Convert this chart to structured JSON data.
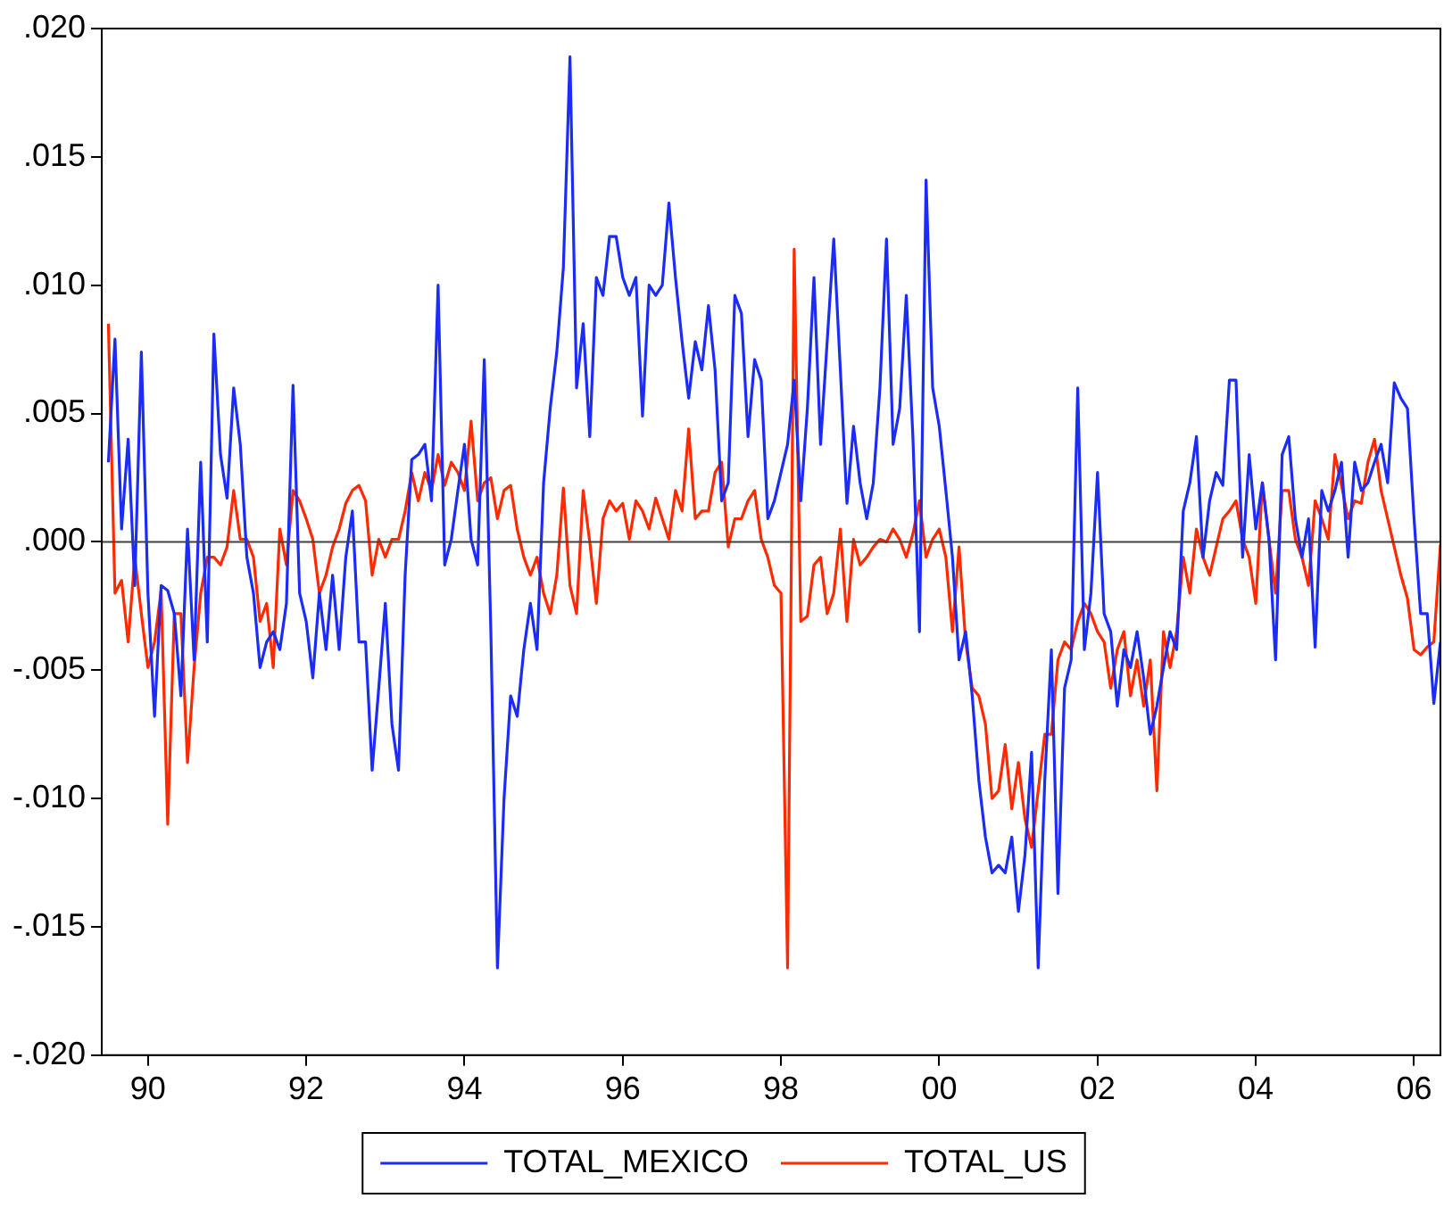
{
  "chart_data": {
    "type": "line",
    "x": [
      "1990-01",
      "1990-02",
      "1990-03",
      "1990-04",
      "1990-05",
      "1990-06",
      "1990-07",
      "1990-08",
      "1990-09",
      "1990-10",
      "1990-11",
      "1990-12",
      "1991-01",
      "1991-02",
      "1991-03",
      "1991-04",
      "1991-05",
      "1991-06",
      "1991-07",
      "1991-08",
      "1991-09",
      "1991-10",
      "1991-11",
      "1991-12",
      "1992-01",
      "1992-02",
      "1992-03",
      "1992-04",
      "1992-05",
      "1992-06",
      "1992-07",
      "1992-08",
      "1992-09",
      "1992-10",
      "1992-11",
      "1992-12",
      "1993-01",
      "1993-02",
      "1993-03",
      "1993-04",
      "1993-05",
      "1993-06",
      "1993-07",
      "1993-08",
      "1993-09",
      "1993-10",
      "1993-11",
      "1993-12",
      "1994-01",
      "1994-02",
      "1994-03",
      "1994-04",
      "1994-05",
      "1994-06",
      "1994-07",
      "1994-08",
      "1994-09",
      "1994-10",
      "1994-11",
      "1994-12",
      "1995-01",
      "1995-02",
      "1995-03",
      "1995-04",
      "1995-05",
      "1995-06",
      "1995-07",
      "1995-08",
      "1995-09",
      "1995-10",
      "1995-11",
      "1995-12",
      "1996-01",
      "1996-02",
      "1996-03",
      "1996-04",
      "1996-05",
      "1996-06",
      "1996-07",
      "1996-08",
      "1996-09",
      "1996-10",
      "1996-11",
      "1996-12",
      "1997-01",
      "1997-02",
      "1997-03",
      "1997-04",
      "1997-05",
      "1997-06",
      "1997-07",
      "1997-08",
      "1997-09",
      "1997-10",
      "1997-11",
      "1997-12",
      "1998-01",
      "1998-02",
      "1998-03",
      "1998-04",
      "1998-05",
      "1998-06",
      "1998-07",
      "1998-08",
      "1998-09",
      "1998-10",
      "1998-11",
      "1998-12",
      "1999-01",
      "1999-02",
      "1999-03",
      "1999-04",
      "1999-05",
      "1999-06",
      "1999-07",
      "1999-08",
      "1999-09",
      "1999-10",
      "1999-11",
      "1999-12",
      "2000-01",
      "2000-02",
      "2000-03",
      "2000-04",
      "2000-05",
      "2000-06",
      "2000-07",
      "2000-08",
      "2000-09",
      "2000-10",
      "2000-11",
      "2000-12",
      "2001-01",
      "2001-02",
      "2001-03",
      "2001-04",
      "2001-05",
      "2001-06",
      "2001-07",
      "2001-08",
      "2001-09",
      "2001-10",
      "2001-11",
      "2001-12",
      "2002-01",
      "2002-02",
      "2002-03",
      "2002-04",
      "2002-05",
      "2002-06",
      "2002-07",
      "2002-08",
      "2002-09",
      "2002-10",
      "2002-11",
      "2002-12",
      "2003-01",
      "2003-02",
      "2003-03",
      "2003-04",
      "2003-05",
      "2003-06",
      "2003-07",
      "2003-08",
      "2003-09",
      "2003-10",
      "2003-11",
      "2003-12",
      "2004-01",
      "2004-02",
      "2004-03",
      "2004-04",
      "2004-05",
      "2004-06",
      "2004-07",
      "2004-08",
      "2004-09",
      "2004-10",
      "2004-11",
      "2004-12",
      "2005-01",
      "2005-02",
      "2005-03",
      "2005-04",
      "2005-05",
      "2005-06",
      "2005-07",
      "2005-08",
      "2005-09",
      "2005-10",
      "2005-11",
      "2005-12",
      "2006-01",
      "2006-02",
      "2006-03",
      "2006-04",
      "2006-05",
      "2006-06",
      "2006-07",
      "2006-08",
      "2006-09",
      "2006-10",
      "2006-11"
    ],
    "series": [
      {
        "name": "TOTAL_MEXICO",
        "color": "#1a2cf5",
        "values": [
          0.0031,
          0.0079,
          0.0005,
          0.004,
          -0.0017,
          0.0074,
          -0.002,
          -0.0068,
          -0.0017,
          -0.0019,
          -0.0028,
          -0.006,
          0.0005,
          -0.0046,
          0.0031,
          -0.0039,
          0.0081,
          0.0034,
          0.0017,
          0.006,
          0.0038,
          -0.0006,
          -0.002,
          -0.0049,
          -0.0039,
          -0.0035,
          -0.0042,
          -0.0024,
          0.0061,
          -0.002,
          -0.0031,
          -0.0053,
          -0.002,
          -0.0042,
          -0.0013,
          -0.0042,
          -0.0006,
          0.0012,
          -0.0039,
          -0.0039,
          -0.0089,
          -0.0057,
          -0.0024,
          -0.0071,
          -0.0089,
          -0.0013,
          0.0032,
          0.0034,
          0.0038,
          0.0016,
          0.01,
          -0.0009,
          0.0001,
          0.002,
          0.0038,
          0.0001,
          -0.0009,
          0.0071,
          -0.0035,
          -0.0166,
          -0.01,
          -0.006,
          -0.0068,
          -0.0042,
          -0.0024,
          -0.0042,
          0.0023,
          0.0052,
          0.0074,
          0.0107,
          0.0189,
          0.006,
          0.0085,
          0.0041,
          0.0103,
          0.0096,
          0.0119,
          0.0119,
          0.0103,
          0.0096,
          0.0103,
          0.0049,
          0.01,
          0.0096,
          0.01,
          0.0132,
          0.0103,
          0.0078,
          0.0056,
          0.0078,
          0.0067,
          0.0092,
          0.0067,
          0.0016,
          0.0023,
          0.0096,
          0.0089,
          0.0041,
          0.0071,
          0.0063,
          0.0009,
          0.0016,
          0.0027,
          0.0038,
          0.0063,
          0.0016,
          0.0052,
          0.0103,
          0.0038,
          0.0078,
          0.0118,
          0.0067,
          0.0015,
          0.0045,
          0.0023,
          0.0009,
          0.0023,
          0.006,
          0.0118,
          0.0038,
          0.0052,
          0.0096,
          0.0041,
          -0.0035,
          0.0141,
          0.006,
          0.0045,
          0.002,
          -0.0006,
          -0.0046,
          -0.0035,
          -0.006,
          -0.0093,
          -0.0115,
          -0.0129,
          -0.0126,
          -0.0129,
          -0.0115,
          -0.0144,
          -0.0122,
          -0.0082,
          -0.0166,
          -0.0093,
          -0.0042,
          -0.0137,
          -0.0057,
          -0.0046,
          0.006,
          -0.0042,
          -0.002,
          0.0027,
          -0.0028,
          -0.0035,
          -0.0064,
          -0.0042,
          -0.0049,
          -0.0035,
          -0.0053,
          -0.0075,
          -0.0064,
          -0.0049,
          -0.0035,
          -0.0042,
          0.0012,
          0.0023,
          0.0041,
          -0.0006,
          0.0016,
          0.0027,
          0.0022,
          0.0063,
          0.0063,
          -0.0006,
          0.0034,
          0.0005,
          0.0023,
          0.0001,
          -0.0046,
          0.0034,
          0.0041,
          0.0009,
          -0.0006,
          0.0009,
          -0.0041,
          0.002,
          0.0012,
          0.002,
          0.0031,
          -0.0006,
          0.0031,
          0.002,
          0.0023,
          0.0031,
          0.0038,
          0.0023,
          0.0062,
          0.0056,
          0.0052,
          0.0009,
          -0.0028,
          -0.0028,
          -0.0063,
          -0.0039
        ]
      },
      {
        "name": "TOTAL_US",
        "color": "#ff2a00",
        "values": [
          0.0085,
          -0.002,
          -0.0015,
          -0.0039,
          -0.0006,
          -0.0028,
          -0.0049,
          -0.0039,
          -0.0019,
          -0.011,
          -0.0028,
          -0.0028,
          -0.0086,
          -0.0049,
          -0.002,
          -0.0006,
          -0.0006,
          -0.0009,
          -0.0002,
          0.002,
          0.0001,
          0.0001,
          -0.0006,
          -0.0031,
          -0.0024,
          -0.0049,
          0.0005,
          -0.0009,
          0.002,
          0.0016,
          0.0009,
          0.0001,
          -0.002,
          -0.0013,
          -0.0002,
          0.0005,
          0.0015,
          0.002,
          0.0022,
          0.0016,
          -0.0013,
          0.0001,
          -0.0006,
          0.0001,
          0.0001,
          0.0012,
          0.0027,
          0.0016,
          0.0027,
          0.002,
          0.0034,
          0.0022,
          0.0031,
          0.0027,
          0.002,
          0.0047,
          0.0016,
          0.0023,
          0.0025,
          0.0009,
          0.002,
          0.0022,
          0.0005,
          -0.0006,
          -0.0013,
          -0.0006,
          -0.002,
          -0.0028,
          -0.0013,
          0.0021,
          -0.0017,
          -0.0028,
          0.002,
          0,
          -0.0024,
          0.0009,
          0.0016,
          0.0012,
          0.0015,
          0.0001,
          0.0016,
          0.0012,
          0.0005,
          0.0017,
          0.0009,
          0.0001,
          0.002,
          0.0012,
          0.0044,
          0.0009,
          0.0012,
          0.0012,
          0.0027,
          0.0031,
          -0.0002,
          0.0009,
          0.0009,
          0.0016,
          0.002,
          0.0001,
          -0.0006,
          -0.0017,
          -0.002,
          -0.0166,
          0.0114,
          -0.0031,
          -0.0029,
          -0.0009,
          -0.0006,
          -0.0028,
          -0.002,
          0.0005,
          -0.0031,
          0.0001,
          -0.0009,
          -0.0006,
          -0.0002,
          0.0001,
          0,
          0.0005,
          0.0001,
          -0.0006,
          0.0003,
          0.0016,
          -0.0006,
          0.0001,
          0.0005,
          -0.0006,
          -0.0035,
          -0.0002,
          -0.0039,
          -0.0057,
          -0.006,
          -0.0071,
          -0.01,
          -0.0097,
          -0.0079,
          -0.0104,
          -0.0086,
          -0.0108,
          -0.0119,
          -0.0097,
          -0.0075,
          -0.0075,
          -0.0046,
          -0.0039,
          -0.0042,
          -0.0031,
          -0.0024,
          -0.0028,
          -0.0035,
          -0.0039,
          -0.0057,
          -0.0042,
          -0.0035,
          -0.006,
          -0.0046,
          -0.0064,
          -0.0046,
          -0.0097,
          -0.0035,
          -0.0049,
          -0.0035,
          -0.0006,
          -0.002,
          0.0005,
          -0.0006,
          -0.0013,
          -0.0002,
          0.0009,
          0.0012,
          0.0016,
          0.0001,
          -0.0006,
          -0.0024,
          0.0023,
          0.0001,
          -0.002,
          0.002,
          0.002,
          0.0001,
          -0.0006,
          -0.0017,
          0.0016,
          0.0009,
          0.0001,
          0.0034,
          0.0022,
          0.0009,
          0.0016,
          0.0015,
          0.0031,
          0.004,
          0.002,
          0.0009,
          -0.0002,
          -0.0013,
          -0.0022,
          -0.0042,
          -0.0044,
          -0.0041,
          -0.0039,
          -0.0001
        ]
      }
    ],
    "xlim": [
      "1989-12",
      "2006-11"
    ],
    "xticks": [
      {
        "value": "1990-07",
        "label": "90"
      },
      {
        "value": "1992-07",
        "label": "92"
      },
      {
        "value": "1994-07",
        "label": "94"
      },
      {
        "value": "1996-07",
        "label": "96"
      },
      {
        "value": "1998-07",
        "label": "98"
      },
      {
        "value": "2000-07",
        "label": "00"
      },
      {
        "value": "2002-07",
        "label": "02"
      },
      {
        "value": "2004-07",
        "label": "04"
      },
      {
        "value": "2006-07",
        "label": "06"
      }
    ],
    "ylim": [
      -0.02,
      0.02
    ],
    "yticks": [
      {
        "value": -0.02,
        "label": "-.020"
      },
      {
        "value": -0.015,
        "label": "-.015"
      },
      {
        "value": -0.01,
        "label": "-.010"
      },
      {
        "value": -0.005,
        "label": "-.005"
      },
      {
        "value": 0,
        "label": ".000"
      },
      {
        "value": 0.005,
        "label": ".005"
      },
      {
        "value": 0.01,
        "label": ".010"
      },
      {
        "value": 0.015,
        "label": ".015"
      },
      {
        "value": 0.02,
        "label": ".020"
      }
    ],
    "ref_lines": [
      {
        "axis": "y",
        "value": 0,
        "color": "#404040"
      }
    ],
    "legend": "bottom"
  }
}
